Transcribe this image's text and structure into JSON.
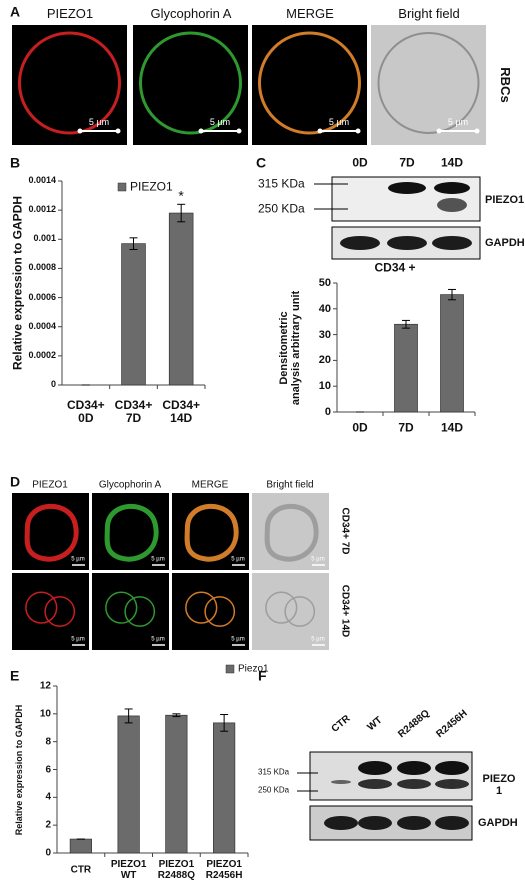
{
  "panel_labels": [
    "A",
    "B",
    "C",
    "D",
    "E",
    "F"
  ],
  "panel_a": {
    "headers": [
      "PIEZO1",
      "Glycophorin A",
      "MERGE",
      "Bright field"
    ],
    "scale_bar": "5 µm",
    "side_label": "RBCs"
  },
  "panel_c_blot": {
    "lanes": [
      "0D",
      "7D",
      "14D"
    ],
    "markers": [
      "315 KDa",
      "250 KDa"
    ],
    "bands": [
      "PIEZO1",
      "GAPDH"
    ],
    "caption": "CD34 +"
  },
  "panel_d": {
    "headers": [
      "PIEZO1",
      "Glycophorin A",
      "MERGE",
      "Bright field"
    ],
    "row_labels": [
      "CD34+ 7D",
      "CD34+ 14D"
    ],
    "scale_bar": "5 µm"
  },
  "panel_f_blot": {
    "lanes": [
      "CTR",
      "WT",
      "R2488Q",
      "R2456H"
    ],
    "markers": [
      "315 KDa",
      "250 KDa"
    ],
    "bands": [
      "PIEZO 1",
      "GAPDH"
    ]
  },
  "chart_data": [
    {
      "type": "bar",
      "y_label": "Relative expression to GAPDH",
      "categories": [
        "CD34+\n0D",
        "CD34+\n7D",
        "CD34+\n14D"
      ],
      "series": [
        {
          "name": "PIEZO1",
          "color": "#6b6b6b",
          "values": [
            0,
            0.00097,
            0.00118
          ],
          "errors": [
            0,
            4e-05,
            6e-05
          ]
        }
      ],
      "annotation": "*",
      "ylim": [
        0,
        0.0014
      ],
      "yticks": [
        0,
        0.0002,
        0.0004,
        0.0006,
        0.0008,
        0.001,
        0.0012,
        0.0014
      ],
      "legend": true,
      "grid": false
    },
    {
      "type": "bar",
      "y_label": "Densitometric\nanalysis arbitrary unit",
      "categories": [
        "0D",
        "7D",
        "14D"
      ],
      "series": [
        {
          "name": "CD34 +",
          "color": "#6b6b6b",
          "values": [
            0,
            34,
            45.5
          ],
          "errors": [
            0,
            1.5,
            2
          ]
        }
      ],
      "ylim": [
        0,
        50
      ],
      "yticks": [
        0,
        10,
        20,
        30,
        40,
        50
      ],
      "legend": false,
      "grid": false
    },
    {
      "type": "bar",
      "y_label": "Relative expression to GAPDH",
      "categories": [
        "CTR",
        "PIEZO1\nWT",
        "PIEZO1\nR2488Q",
        "PIEZO1\nR2456H"
      ],
      "series": [
        {
          "name": "Piezo1",
          "color": "#6b6b6b",
          "values": [
            1,
            9.85,
            9.9,
            9.35
          ],
          "errors": [
            0,
            0.5,
            0.1,
            0.6
          ]
        }
      ],
      "ylim": [
        0,
        12
      ],
      "yticks": [
        0,
        2,
        4,
        6,
        8,
        10,
        12
      ],
      "legend": true,
      "grid": false
    }
  ]
}
